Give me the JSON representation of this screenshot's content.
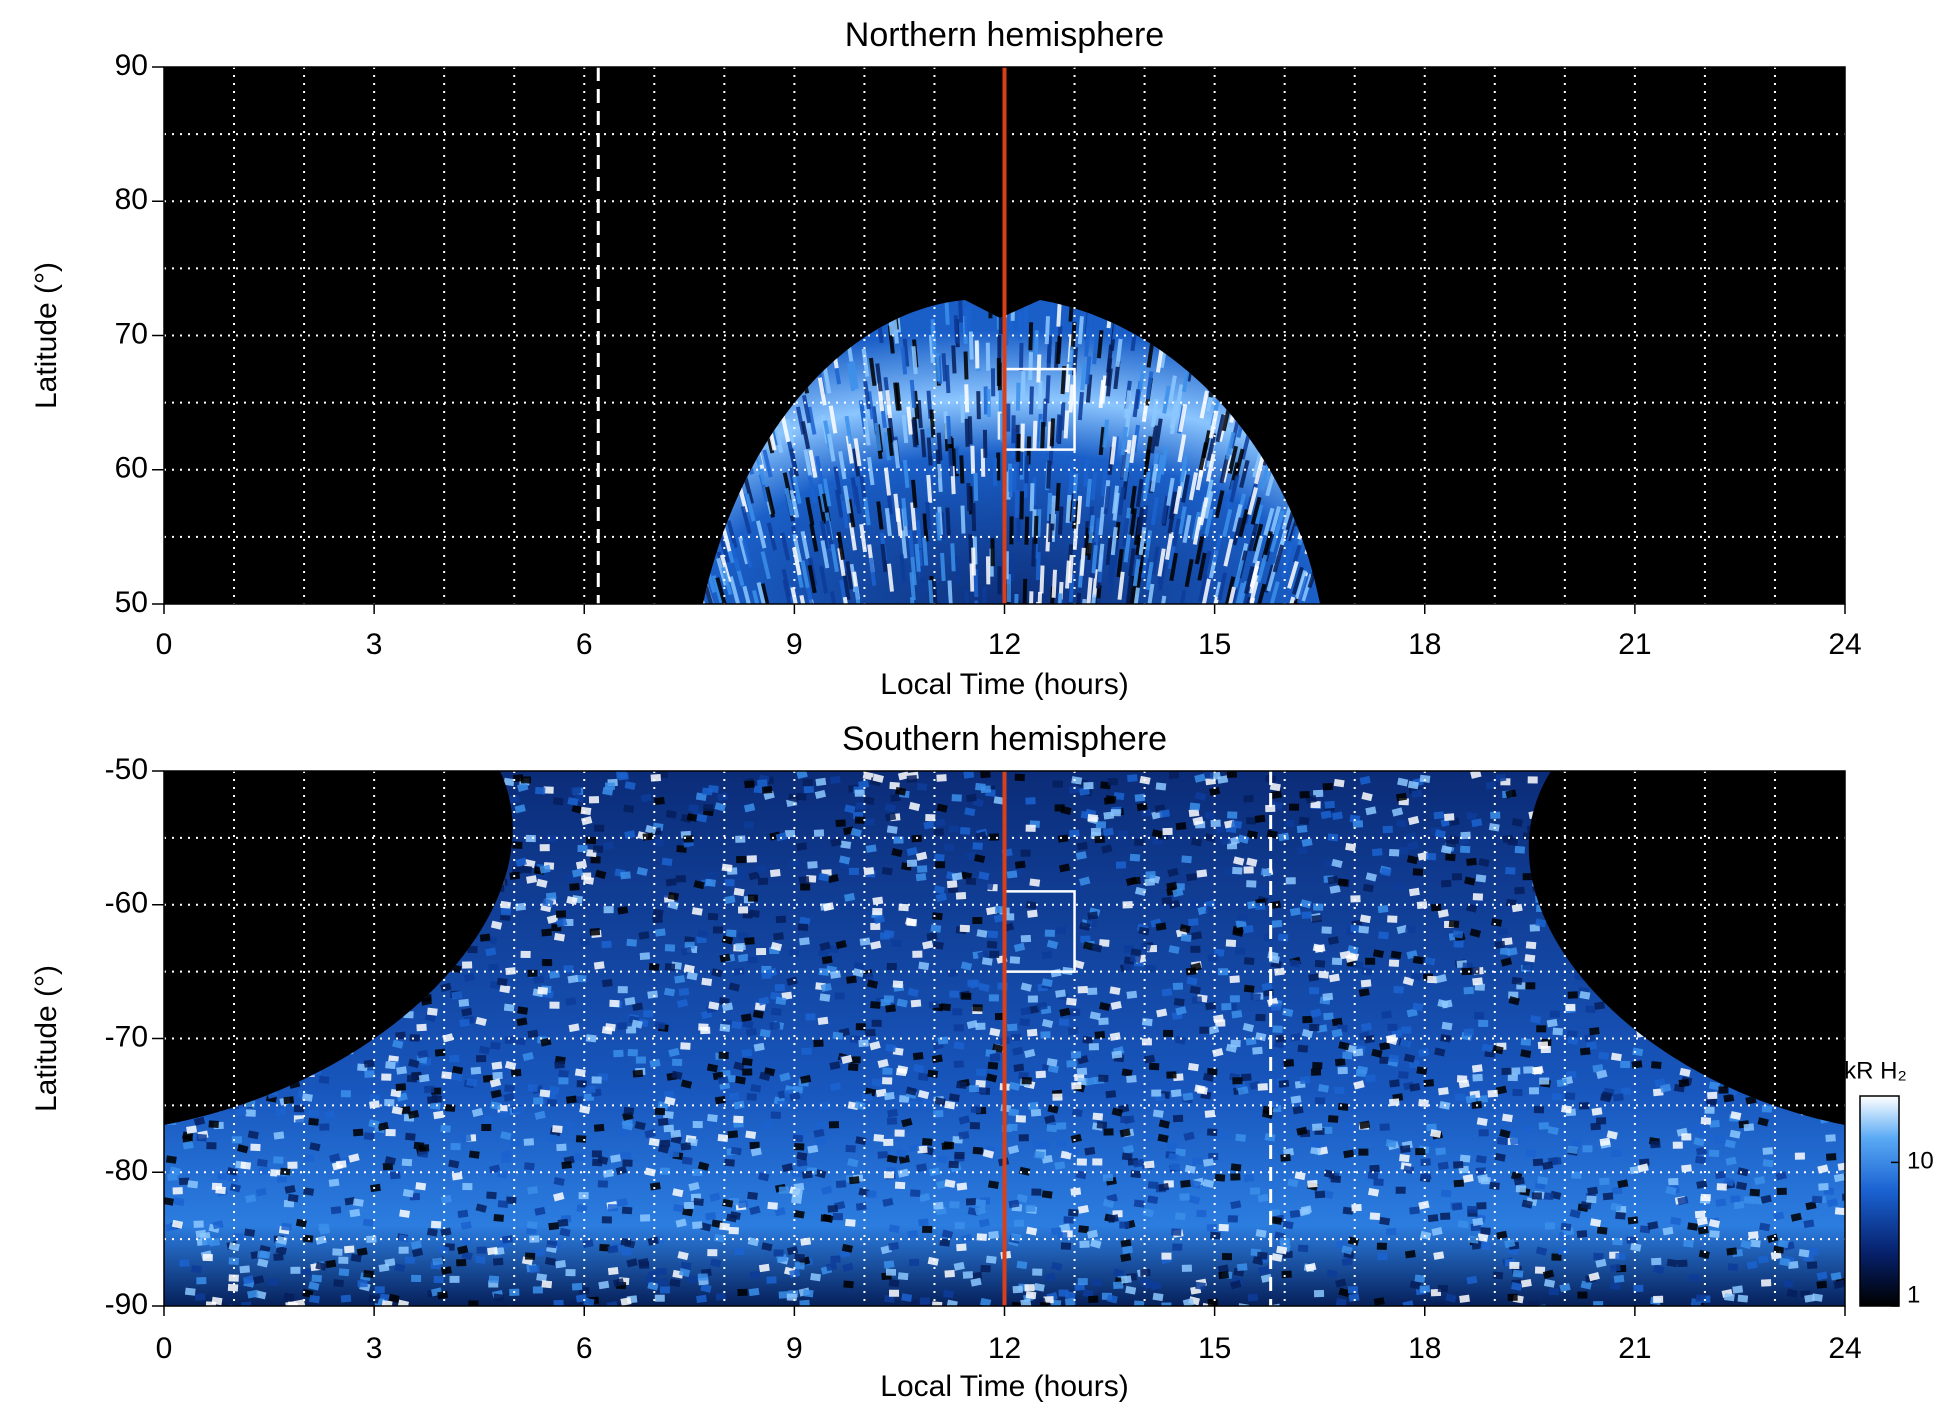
{
  "chart_data": [
    {
      "type": "heatmap",
      "title": "Northern hemisphere",
      "xlabel": "Local Time (hours)",
      "ylabel": "Latitude (°)",
      "xlim": [
        0,
        24
      ],
      "xticks": [
        0,
        3,
        6,
        9,
        12,
        15,
        18,
        21,
        24
      ],
      "ylim": [
        50,
        90
      ],
      "yticks": [
        50,
        60,
        70,
        80,
        90
      ],
      "grid": true,
      "xgrid": [
        1,
        2,
        3,
        4,
        5,
        6,
        7,
        8,
        9,
        10,
        11,
        12,
        13,
        14,
        15,
        16,
        17,
        18,
        19,
        20,
        21,
        22,
        23
      ],
      "ygrid": [
        55,
        60,
        65,
        70,
        75,
        80,
        85
      ],
      "vlines": [
        {
          "x": 12,
          "color": "#d9401a",
          "style": "solid"
        },
        {
          "x": 6.2,
          "color": "#ffffff",
          "style": "dashed"
        }
      ],
      "boxes": [
        {
          "x": [
            12,
            13
          ],
          "y": [
            61.5,
            67.5
          ],
          "color": "#ffffff"
        }
      ]
    },
    {
      "type": "heatmap",
      "title": "Southern hemisphere",
      "xlabel": "Local Time (hours)",
      "ylabel": "Latitude (°)",
      "xlim": [
        0,
        24
      ],
      "xticks": [
        0,
        3,
        6,
        9,
        12,
        15,
        18,
        21,
        24
      ],
      "ylim": [
        -90,
        -50
      ],
      "yticks": [
        -90,
        -80,
        -70,
        -60,
        -50
      ],
      "grid": true,
      "xgrid": [
        1,
        2,
        3,
        4,
        5,
        6,
        7,
        8,
        9,
        10,
        11,
        12,
        13,
        14,
        15,
        16,
        17,
        18,
        19,
        20,
        21,
        22,
        23
      ],
      "ygrid": [
        -85,
        -80,
        -75,
        -70,
        -65,
        -60,
        -55
      ],
      "vlines": [
        {
          "x": 12,
          "color": "#d9401a",
          "style": "solid"
        },
        {
          "x": 15.8,
          "color": "#ffffff",
          "style": "dashed"
        }
      ],
      "boxes": [
        {
          "x": [
            12,
            13
          ],
          "y": [
            -65,
            -59
          ],
          "color": "#ffffff"
        }
      ],
      "colorbar": {
        "label": "kR H₂",
        "lim": [
          1,
          29
        ],
        "ticks": [
          1,
          10
        ],
        "log": true
      }
    }
  ]
}
